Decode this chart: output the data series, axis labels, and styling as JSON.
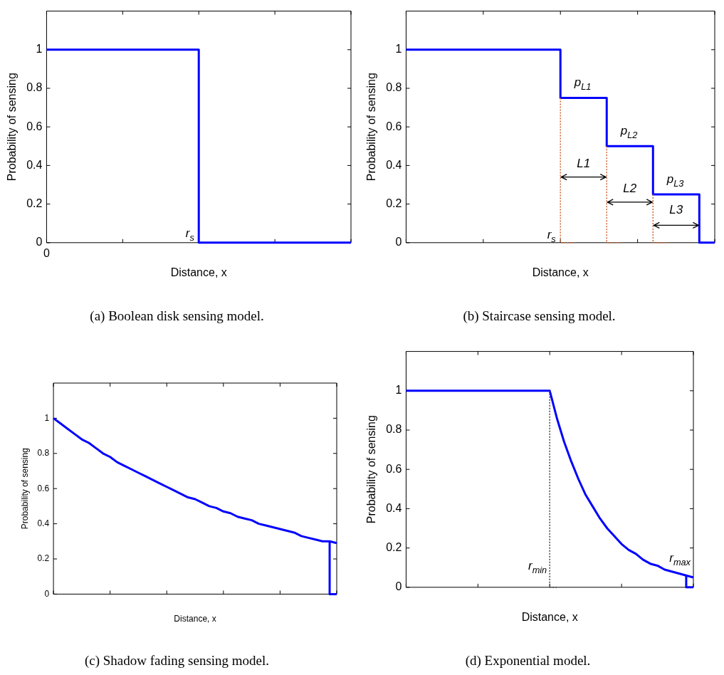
{
  "chart_data": [
    {
      "type": "step",
      "title": "(a) Boolean disk sensing model.",
      "xlabel": "Distance, x",
      "ylabel": "Probability of sensing",
      "categories": [
        "0",
        null,
        null,
        null,
        null,
        null,
        null,
        null,
        null,
        null,
        null,
        null,
        null,
        null,
        null,
        null,
        null,
        null,
        null,
        null,
        null
      ],
      "series": [
        {
          "color": "#0000ff",
          "values": [
            1,
            1,
            1,
            1,
            1,
            1,
            1,
            1,
            1,
            1,
            1,
            0,
            0,
            0,
            0,
            0,
            0,
            0,
            0,
            0,
            0
          ]
        }
      ],
      "ylim": [
        0,
        1.2
      ],
      "yticks": [
        0,
        0.2,
        0.4,
        0.6,
        0.8,
        1
      ],
      "annotations": [
        "r$_{s}$"
      ]
    },
    {
      "type": "step",
      "title": "(b) Staircase sensing model.",
      "xlabel": "Distance, x",
      "ylabel": "Probability of sensing",
      "categories": [
        null,
        null,
        null,
        null,
        null,
        null,
        null,
        null,
        null,
        null,
        null,
        null,
        null,
        null,
        null,
        null,
        null,
        null,
        null,
        null,
        null
      ],
      "series": [
        {
          "color": "#cc6633",
          "type": "step",
          "line_style": "dotted",
          "values": [
            null,
            null,
            null,
            null,
            null,
            null,
            null,
            null,
            null,
            null,
            0.75,
            0,
            null,
            null,
            null,
            null,
            null,
            null,
            null,
            null,
            null
          ]
        },
        {
          "color": "#cc6633",
          "type": "step",
          "line_style": "dotted",
          "values": [
            null,
            null,
            null,
            null,
            null,
            null,
            null,
            null,
            null,
            null,
            null,
            null,
            null,
            0.5,
            0,
            null,
            null,
            null,
            null,
            null,
            null
          ]
        },
        {
          "color": "#cc6633",
          "type": "step",
          "line_style": "dotted",
          "values": [
            null,
            null,
            null,
            null,
            null,
            null,
            null,
            null,
            null,
            null,
            null,
            null,
            null,
            null,
            null,
            null,
            0.25,
            0,
            null,
            null,
            null
          ]
        },
        {
          "color": "#0000ff",
          "values": [
            1,
            1,
            1,
            1,
            1,
            1,
            1,
            1,
            1,
            1,
            1,
            0.75,
            0.75,
            0.75,
            0.5,
            0.5,
            0.5,
            0.25,
            0.25,
            0.25,
            0
          ]
        }
      ],
      "ylim": [
        0,
        1.2
      ],
      "yticks": [
        0,
        0.2,
        0.4,
        0.6,
        0.8,
        1
      ],
      "annotations": [
        "p$_{L1}$",
        "p$_{L2}$",
        "p$_{L3}$",
        "L1",
        "L2",
        "L3",
        "r$_{s}$"
      ]
    },
    {
      "type": "line",
      "title": "(c) Shadow fading sensing model.",
      "xlabel": "Distance, x",
      "ylabel": "Probability of sensing",
      "categories": [
        null,
        null,
        null,
        null,
        null,
        null,
        null,
        null,
        null,
        null,
        null,
        null,
        null,
        null,
        null,
        null,
        null,
        null,
        null,
        null,
        null,
        null,
        null,
        null,
        null,
        null,
        null,
        null,
        null,
        null,
        null,
        null,
        null,
        null,
        null,
        null,
        null,
        null,
        null,
        null,
        null
      ],
      "series": [
        {
          "color": "#0000ff",
          "values": [
            1,
            0.97,
            0.94,
            0.91,
            0.88,
            0.86,
            0.83,
            0.8,
            0.78,
            0.75,
            0.73,
            0.71,
            0.69,
            0.67,
            0.65,
            0.63,
            0.61,
            0.59,
            0.57,
            0.55,
            0.54,
            0.52,
            0.5,
            0.49,
            0.47,
            0.46,
            0.44,
            0.43,
            0.42,
            0.4,
            0.39,
            0.38,
            0.37,
            0.36,
            0.35,
            0.33,
            0.32,
            0.31,
            0.3,
            0.3,
            0.29
          ]
        },
        {
          "color": "#0000ff",
          "type": "step",
          "values": [
            null,
            null,
            null,
            null,
            null,
            null,
            null,
            null,
            null,
            null,
            null,
            null,
            null,
            null,
            null,
            null,
            null,
            null,
            null,
            null,
            null,
            null,
            null,
            null,
            null,
            null,
            null,
            null,
            null,
            null,
            null,
            null,
            null,
            null,
            null,
            null,
            null,
            null,
            null,
            0.3,
            0
          ]
        }
      ],
      "ylim": [
        0,
        1.2
      ],
      "yticks": [
        0,
        0.2,
        0.4,
        0.6,
        0.8,
        1
      ]
    },
    {
      "type": "line",
      "title": "(d) Exponential model.",
      "xlabel": "Distance, x",
      "ylabel": "Probability of sensing",
      "categories": [
        null,
        null,
        null,
        null,
        null,
        null,
        null,
        null,
        null,
        null,
        null,
        null,
        null,
        null,
        null,
        null,
        null,
        null,
        null,
        null,
        null,
        null,
        null,
        null,
        null,
        null,
        null,
        null,
        null,
        null,
        null,
        null,
        null,
        null,
        null,
        null,
        null,
        null,
        null,
        null,
        null
      ],
      "series": [
        {
          "color": "#404040",
          "type": "step",
          "line_style": "dotted",
          "values": [
            null,
            null,
            null,
            null,
            null,
            null,
            null,
            null,
            null,
            null,
            null,
            null,
            null,
            null,
            null,
            null,
            null,
            null,
            null,
            null,
            1,
            0,
            null,
            null,
            null,
            null,
            null,
            null,
            null,
            null,
            null,
            null,
            null,
            null,
            null,
            null,
            null,
            null,
            null,
            null,
            null
          ]
        },
        {
          "color": "#0000ff",
          "values": [
            1,
            1,
            1,
            1,
            1,
            1,
            1,
            1,
            1,
            1,
            1,
            1,
            1,
            1,
            1,
            1,
            1,
            1,
            1,
            1,
            1,
            0.86,
            0.74,
            0.64,
            0.55,
            0.47,
            0.41,
            0.35,
            0.3,
            0.26,
            0.22,
            0.19,
            0.17,
            0.14,
            0.12,
            0.11,
            0.09,
            0.08,
            0.07,
            0.06,
            0.05
          ]
        },
        {
          "color": "#0000ff",
          "type": "step",
          "values": [
            null,
            null,
            null,
            null,
            null,
            null,
            null,
            null,
            null,
            null,
            null,
            null,
            null,
            null,
            null,
            null,
            null,
            null,
            null,
            null,
            null,
            null,
            null,
            null,
            null,
            null,
            null,
            null,
            null,
            null,
            null,
            null,
            null,
            null,
            null,
            null,
            null,
            null,
            null,
            0.06,
            0
          ]
        }
      ],
      "ylim": [
        0,
        1.2
      ],
      "yticks": [
        0,
        0.2,
        0.4,
        0.6,
        0.8,
        1
      ],
      "annotations": [
        "r$_{min}$",
        "r$_{max}$"
      ]
    }
  ]
}
